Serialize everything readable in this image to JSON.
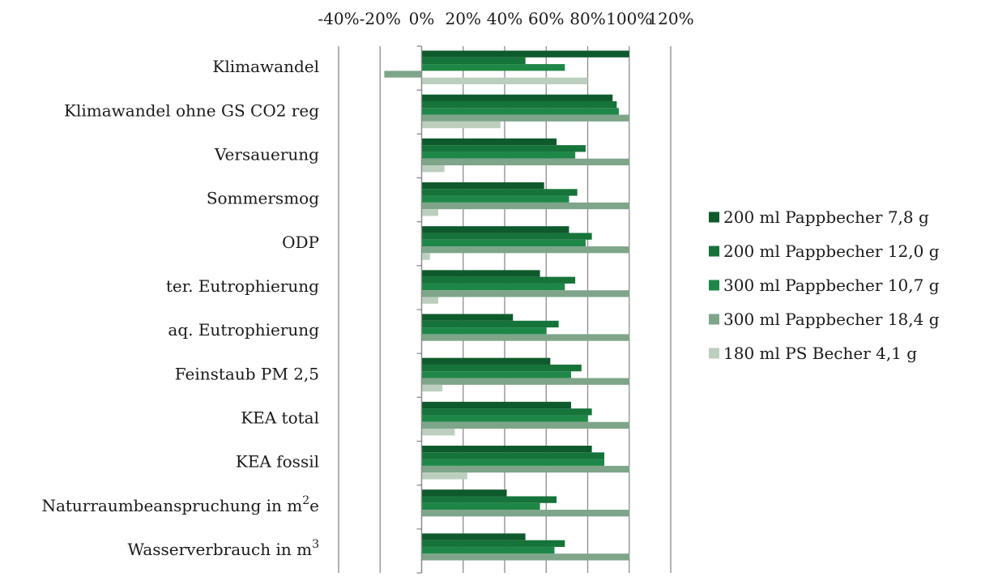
{
  "chart_data": {
    "type": "bar",
    "orientation": "horizontal",
    "title": "",
    "xlabel": "",
    "ylabel": "",
    "xlim": [
      -40,
      120
    ],
    "x_ticks": [
      "-40%",
      "-20%",
      "0%",
      "20%",
      "40%",
      "60%",
      "80%",
      "100%",
      "120%"
    ],
    "x_axis_position": "top",
    "grid": true,
    "legend_position": "right",
    "categories": [
      "Klimawandel",
      "Klimawandel ohne GS CO2 reg",
      "Versauerung",
      "Sommersmog",
      "ODP",
      "ter. Eutrophierung",
      "aq. Eutrophierung",
      "Feinstaub PM 2,5",
      "KEA total",
      "KEA fossil",
      "Naturraumbeanspruchung in m²e",
      "Wasserverbrauch in m³"
    ],
    "series": [
      {
        "name": "200 ml Pappbecher 7,8 g",
        "color": "#0f5a2c",
        "values": [
          100,
          92,
          65,
          59,
          71,
          57,
          44,
          62,
          72,
          82,
          41,
          50
        ]
      },
      {
        "name": "200 ml Pappbecher 12,0 g",
        "color": "#16733a",
        "values": [
          50,
          94,
          79,
          75,
          82,
          74,
          66,
          77,
          82,
          88,
          65,
          69
        ]
      },
      {
        "name": "300 ml Pappbecher 10,7 g",
        "color": "#1e8747",
        "values": [
          69,
          95,
          74,
          71,
          79,
          69,
          60,
          72,
          80,
          88,
          57,
          64
        ]
      },
      {
        "name": "300 ml Pappbecher 18,4 g",
        "color": "#7ea58a",
        "values": [
          -18,
          100,
          100,
          100,
          100,
          100,
          100,
          100,
          100,
          100,
          100,
          100
        ]
      },
      {
        "name": "180 ml PS Becher  4,1 g",
        "color": "#bccfbf",
        "values": [
          80,
          38,
          11,
          8,
          4,
          8,
          null,
          10,
          16,
          22,
          null,
          null
        ]
      }
    ]
  }
}
